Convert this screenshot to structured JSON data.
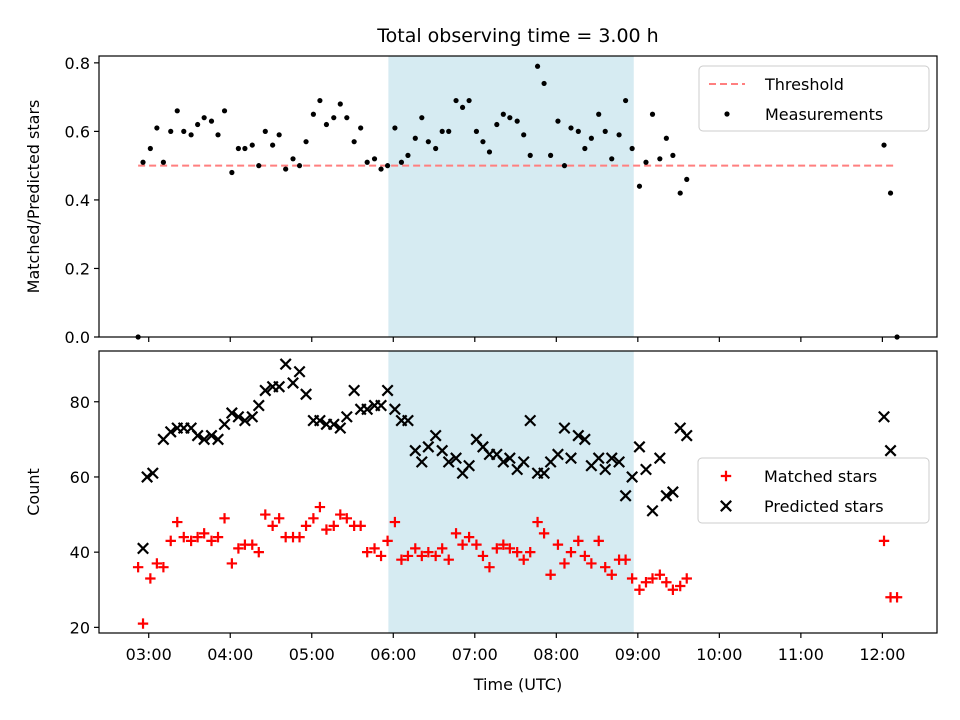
{
  "chart_data": {
    "type": "scatter",
    "title": "Total observing time = 3.00 h",
    "xlabel": "Time (UTC)",
    "xticks": [
      "03:00",
      "04:00",
      "05:00",
      "06:00",
      "07:00",
      "08:00",
      "09:00",
      "10:00",
      "11:00",
      "12:00"
    ],
    "xtick_hours": [
      3,
      4,
      5,
      6,
      7,
      8,
      9,
      10,
      11,
      12
    ],
    "xlim_hours": [
      2.39,
      12.67
    ],
    "highlight_hours": [
      5.94,
      8.95
    ],
    "colors": {
      "highlight": "#add8e6",
      "threshold": "#ff7f7f",
      "measurements": "#000000",
      "matched": "#ff0000",
      "predicted": "#000000"
    },
    "panels": [
      {
        "ylabel": "Matched/Predicted stars",
        "ylim": [
          0,
          0.82
        ],
        "yticks": [
          "0.0",
          "0.2",
          "0.4",
          "0.6",
          "0.8"
        ],
        "ytick_values": [
          0,
          0.2,
          0.4,
          0.6,
          0.8
        ],
        "legend": [
          "Threshold",
          "Measurements"
        ],
        "legend_position": "upper right",
        "threshold": {
          "value": 0.5,
          "x_range_hours": [
            2.87,
            12.17
          ]
        },
        "series": [
          {
            "name": "Measurements",
            "marker": "dot",
            "x_hours": [
              2.87,
              2.93,
              3.02,
              3.1,
              3.18,
              3.27,
              3.35,
              3.43,
              3.52,
              3.6,
              3.68,
              3.77,
              3.85,
              3.93,
              4.02,
              4.1,
              4.18,
              4.27,
              4.35,
              4.43,
              4.52,
              4.6,
              4.68,
              4.77,
              4.85,
              4.93,
              5.02,
              5.1,
              5.18,
              5.27,
              5.35,
              5.43,
              5.52,
              5.6,
              5.68,
              5.77,
              5.85,
              5.93,
              6.02,
              6.1,
              6.18,
              6.27,
              6.35,
              6.43,
              6.52,
              6.6,
              6.68,
              6.77,
              6.85,
              6.93,
              7.02,
              7.1,
              7.18,
              7.27,
              7.35,
              7.43,
              7.52,
              7.6,
              7.68,
              7.77,
              7.85,
              7.93,
              8.02,
              8.1,
              8.18,
              8.27,
              8.35,
              8.43,
              8.52,
              8.6,
              8.68,
              8.77,
              8.85,
              8.93,
              9.02,
              9.1,
              9.18,
              9.27,
              9.35,
              9.43,
              9.52,
              9.6,
              12.02,
              12.1,
              12.18
            ],
            "y": [
              0.0,
              0.51,
              0.55,
              0.61,
              0.51,
              0.6,
              0.66,
              0.6,
              0.59,
              0.62,
              0.64,
              0.63,
              0.59,
              0.66,
              0.48,
              0.55,
              0.55,
              0.56,
              0.5,
              0.6,
              0.56,
              0.59,
              0.49,
              0.52,
              0.5,
              0.57,
              0.65,
              0.69,
              0.62,
              0.64,
              0.68,
              0.64,
              0.57,
              0.61,
              0.51,
              0.52,
              0.49,
              0.5,
              0.61,
              0.51,
              0.53,
              0.58,
              0.64,
              0.57,
              0.55,
              0.6,
              0.6,
              0.69,
              0.67,
              0.69,
              0.6,
              0.57,
              0.54,
              0.62,
              0.65,
              0.64,
              0.63,
              0.59,
              0.53,
              0.79,
              0.74,
              0.53,
              0.63,
              0.5,
              0.61,
              0.6,
              0.55,
              0.58,
              0.65,
              0.6,
              0.52,
              0.59,
              0.69,
              0.55,
              0.44,
              0.51,
              0.65,
              0.52,
              0.58,
              0.53,
              0.42,
              0.46,
              0.56,
              0.42,
              0.0
            ]
          }
        ]
      },
      {
        "ylabel": "Count",
        "ylim": [
          18.5,
          93.5
        ],
        "yticks": [
          "20",
          "40",
          "60",
          "80"
        ],
        "ytick_values": [
          20,
          40,
          60,
          80
        ],
        "legend": [
          "Matched stars",
          "Predicted stars"
        ],
        "legend_position": "center right",
        "series": [
          {
            "name": "Matched stars",
            "marker": "plus",
            "x_hours": [
              2.87,
              2.93,
              3.02,
              3.1,
              3.18,
              3.27,
              3.35,
              3.43,
              3.52,
              3.6,
              3.68,
              3.77,
              3.85,
              3.93,
              4.02,
              4.1,
              4.18,
              4.27,
              4.35,
              4.43,
              4.52,
              4.6,
              4.68,
              4.77,
              4.85,
              4.93,
              5.02,
              5.1,
              5.18,
              5.27,
              5.35,
              5.43,
              5.52,
              5.6,
              5.68,
              5.77,
              5.85,
              5.93,
              6.02,
              6.1,
              6.18,
              6.27,
              6.35,
              6.43,
              6.52,
              6.6,
              6.68,
              6.77,
              6.85,
              6.93,
              7.02,
              7.1,
              7.18,
              7.27,
              7.35,
              7.43,
              7.52,
              7.6,
              7.68,
              7.77,
              7.85,
              7.93,
              8.02,
              8.1,
              8.18,
              8.27,
              8.35,
              8.43,
              8.52,
              8.6,
              8.68,
              8.77,
              8.85,
              8.93,
              9.02,
              9.1,
              9.18,
              9.27,
              9.35,
              9.43,
              9.52,
              9.6,
              12.02,
              12.1,
              12.18
            ],
            "y": [
              36,
              21,
              33,
              37,
              36,
              43,
              48,
              44,
              43,
              44,
              45,
              43,
              44,
              49,
              37,
              41,
              42,
              42,
              40,
              50,
              47,
              49,
              44,
              44,
              44,
              47,
              49,
              52,
              46,
              47,
              50,
              49,
              47,
              47,
              40,
              41,
              39,
              43,
              48,
              38,
              39,
              41,
              39,
              40,
              39,
              41,
              38,
              45,
              42,
              44,
              42,
              39,
              36,
              41,
              42,
              41,
              40,
              38,
              40,
              48,
              45,
              34,
              42,
              37,
              40,
              43,
              39,
              37,
              43,
              36,
              34,
              38,
              38,
              33,
              30,
              32,
              33,
              34,
              32,
              30,
              31,
              33,
              43,
              28,
              28
            ]
          },
          {
            "name": "Predicted stars",
            "marker": "x",
            "x_hours": [
              2.93,
              2.98,
              3.05,
              3.18,
              3.27,
              3.35,
              3.43,
              3.52,
              3.6,
              3.68,
              3.77,
              3.85,
              3.93,
              4.02,
              4.1,
              4.18,
              4.27,
              4.35,
              4.43,
              4.52,
              4.6,
              4.68,
              4.77,
              4.85,
              4.93,
              5.02,
              5.1,
              5.18,
              5.27,
              5.35,
              5.43,
              5.52,
              5.6,
              5.68,
              5.77,
              5.85,
              5.93,
              6.02,
              6.1,
              6.18,
              6.27,
              6.35,
              6.43,
              6.52,
              6.6,
              6.68,
              6.77,
              6.85,
              6.93,
              7.02,
              7.1,
              7.18,
              7.27,
              7.35,
              7.43,
              7.52,
              7.6,
              7.68,
              7.77,
              7.85,
              7.93,
              8.02,
              8.1,
              8.18,
              8.27,
              8.35,
              8.43,
              8.52,
              8.6,
              8.68,
              8.77,
              8.85,
              8.93,
              9.02,
              9.1,
              9.18,
              9.27,
              9.35,
              9.43,
              9.52,
              9.6,
              12.02,
              12.1
            ],
            "y": [
              41,
              60,
              61,
              70,
              72,
              73,
              73,
              73,
              71,
              70,
              71,
              70,
              74,
              77,
              76,
              75,
              76,
              79,
              83,
              84,
              84,
              90,
              85,
              88,
              82,
              75,
              75,
              74,
              74,
              73,
              76,
              83,
              78,
              78,
              79,
              79,
              83,
              78,
              75,
              75,
              67,
              64,
              68,
              71,
              67,
              64,
              65,
              61,
              63,
              70,
              68,
              66,
              66,
              64,
              65,
              62,
              64,
              75,
              61,
              61,
              64,
              66,
              73,
              65,
              71,
              70,
              63,
              65,
              62,
              65,
              64,
              55,
              60,
              68,
              62,
              51,
              65,
              55,
              56,
              73,
              71,
              76,
              67
            ]
          }
        ]
      }
    ]
  }
}
